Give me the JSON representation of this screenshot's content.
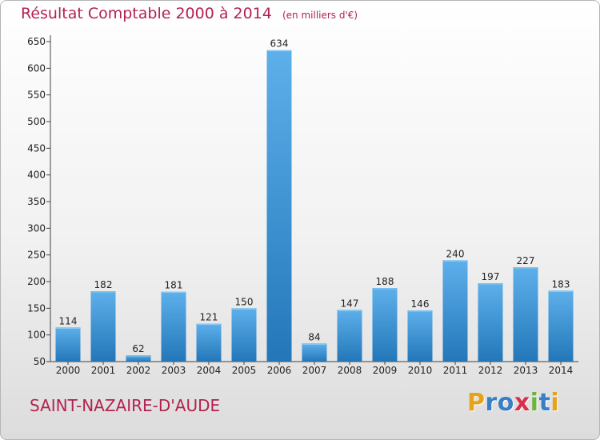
{
  "chart_data": {
    "type": "bar",
    "title": "Résultat Comptable 2000 à 2014",
    "subtitle": "(en milliers d'€)",
    "categories": [
      "2000",
      "2001",
      "2002",
      "2003",
      "2004",
      "2005",
      "2006",
      "2007",
      "2008",
      "2009",
      "2010",
      "2011",
      "2012",
      "2013",
      "2014"
    ],
    "values": [
      114,
      182,
      62,
      181,
      121,
      150,
      634,
      84,
      147,
      188,
      146,
      240,
      197,
      227,
      183
    ],
    "ylim": [
      50,
      650
    ],
    "yticks": [
      50,
      100,
      150,
      200,
      250,
      300,
      350,
      400,
      450,
      500,
      550,
      600,
      650
    ],
    "xlabel": "",
    "ylabel": "",
    "grid": false,
    "legend": "none"
  },
  "footer": {
    "place": "SAINT-NAZAIRE-D'AUDE"
  },
  "brand": {
    "letters": [
      "P",
      "r",
      "o",
      "x",
      "i",
      "t",
      "i"
    ],
    "colors": [
      "#e8a21a",
      "#3a7fc6",
      "#3a7fc6",
      "#d9304a",
      "#6db33f",
      "#3a7fc6",
      "#e8a21a"
    ]
  },
  "colors": {
    "bar_top": "#5db0ea",
    "bar_bottom": "#2377b9",
    "title": "#b3224f"
  }
}
